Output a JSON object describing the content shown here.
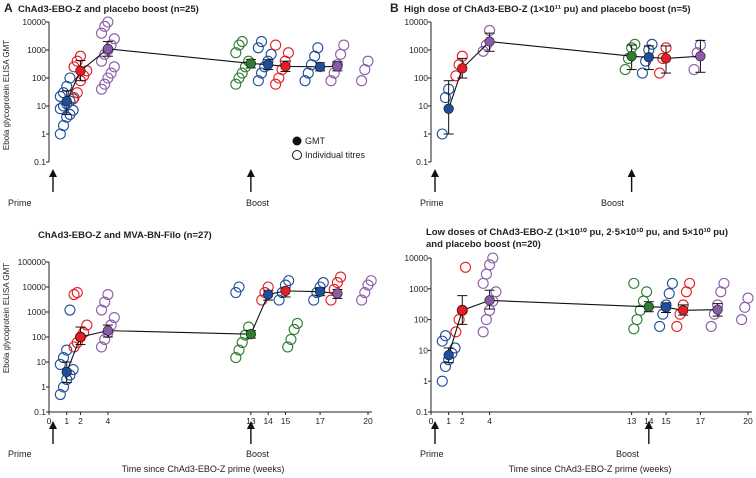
{
  "figure": {
    "panel_letter_a": "A",
    "panel_letter_b": "B",
    "y_axis_label": "Ebola glycoprotein ELISA GMT",
    "x_axis_label": "Time since ChAd3-EBO-Z prime (weeks)",
    "legend_gmt": "GMT",
    "legend_individual": "Individual titres",
    "prime_label": "Prime",
    "boost_label": "Boost",
    "colors": {
      "blue": "#1f4e9c",
      "red": "#e31e24",
      "purple": "#8a5ca8",
      "green": "#2e7d32",
      "black": "#111111"
    }
  },
  "chart_data": [
    {
      "id": "top-left",
      "type": "scatter",
      "scale": "log",
      "title": "ChAd3-EBO-Z and placebo boost (n=25)",
      "ylim": [
        0.1,
        10000
      ],
      "y_ticks": [
        "0.1",
        "1",
        "10",
        "100",
        "1000",
        "10000"
      ],
      "x_ticks": [],
      "prime_week": 0,
      "boost_week": 13,
      "gmt": [
        {
          "x": 1,
          "y": 15,
          "lo": 5,
          "hi": 35,
          "color": "blue"
        },
        {
          "x": 2,
          "y": 180,
          "lo": 80,
          "hi": 420,
          "color": "red"
        },
        {
          "x": 4,
          "y": 1100,
          "lo": 600,
          "hi": 2000,
          "color": "purple"
        },
        {
          "x": 13,
          "y": 330,
          "lo": 230,
          "hi": 460,
          "color": "green"
        },
        {
          "x": 14,
          "y": 300,
          "lo": 200,
          "hi": 450,
          "color": "blue"
        },
        {
          "x": 15,
          "y": 260,
          "lo": 170,
          "hi": 400,
          "color": "red"
        },
        {
          "x": 17,
          "y": 250,
          "lo": 180,
          "hi": 350,
          "color": "blue"
        },
        {
          "x": 18,
          "y": 260,
          "lo": 180,
          "hi": 380,
          "color": "purple"
        }
      ],
      "individual": [
        {
          "color": "blue",
          "x": 1,
          "values": [
            1,
            2,
            4,
            5,
            7,
            8,
            10,
            12,
            15,
            18,
            22,
            30,
            50,
            100
          ]
        },
        {
          "color": "red",
          "x": 2,
          "values": [
            20,
            30,
            80,
            120,
            180,
            250,
            400,
            600
          ]
        },
        {
          "color": "purple",
          "x": 4,
          "values": [
            40,
            60,
            100,
            150,
            250,
            400,
            700,
            1000,
            1500,
            2500,
            4000,
            7000,
            10000
          ]
        },
        {
          "color": "green",
          "x": 12.5,
          "values": [
            60,
            100,
            150,
            250,
            400,
            800,
            1500,
            2000
          ]
        },
        {
          "color": "blue",
          "x": 13.8,
          "values": [
            80,
            150,
            250,
            400,
            700,
            1200,
            2000
          ]
        },
        {
          "color": "red",
          "x": 14.8,
          "values": [
            60,
            100,
            200,
            400,
            800,
            1500
          ]
        },
        {
          "color": "blue",
          "x": 16.5,
          "values": [
            80,
            150,
            300,
            600,
            1200
          ]
        },
        {
          "color": "purple",
          "x": 18,
          "values": [
            80,
            150,
            300,
            700,
            1500
          ]
        },
        {
          "color": "purple",
          "x": 20,
          "values": [
            80,
            200,
            400
          ]
        }
      ]
    },
    {
      "id": "top-right",
      "type": "scatter",
      "scale": "log",
      "title": "High dose of ChAd3-EBO-Z (1×10¹¹ pu) and placebo boost (n=5)",
      "ylim": [
        0.1,
        10000
      ],
      "y_ticks": [
        "0.1",
        "1",
        "10",
        "100",
        "1000",
        "10000"
      ],
      "x_ticks": [],
      "prime_week": 0,
      "boost_week": 13,
      "gmt": [
        {
          "x": 1,
          "y": 8,
          "lo": 1,
          "hi": 80,
          "color": "blue"
        },
        {
          "x": 2,
          "y": 220,
          "lo": 100,
          "hi": 500,
          "color": "red"
        },
        {
          "x": 4,
          "y": 2000,
          "lo": 900,
          "hi": 4000,
          "color": "purple"
        },
        {
          "x": 13,
          "y": 600,
          "lo": 200,
          "hi": 1500,
          "color": "green"
        },
        {
          "x": 14,
          "y": 550,
          "lo": 200,
          "hi": 1400,
          "color": "blue"
        },
        {
          "x": 15,
          "y": 500,
          "lo": 150,
          "hi": 1400,
          "color": "red"
        },
        {
          "x": 17,
          "y": 600,
          "lo": 160,
          "hi": 2200,
          "color": "purple"
        }
      ],
      "individual": [
        {
          "color": "blue",
          "x": 1,
          "values": [
            1,
            20,
            40
          ]
        },
        {
          "color": "red",
          "x": 2,
          "values": [
            120,
            300,
            600
          ]
        },
        {
          "color": "purple",
          "x": 4,
          "values": [
            900,
            1500,
            5000
          ]
        },
        {
          "color": "green",
          "x": 13,
          "values": [
            200,
            500,
            1200,
            1600
          ]
        },
        {
          "color": "blue",
          "x": 14,
          "values": [
            150,
            400,
            1000,
            1600
          ]
        },
        {
          "color": "red",
          "x": 15,
          "values": [
            150,
            500,
            1200
          ]
        },
        {
          "color": "purple",
          "x": 17,
          "values": [
            200,
            800,
            1500
          ]
        }
      ]
    },
    {
      "id": "bottom-left",
      "type": "scatter",
      "scale": "log",
      "title": "ChAd3-EBO-Z and MVA-BN-Filo (n=27)",
      "ylim": [
        0.1,
        100000
      ],
      "y_ticks": [
        "0.1",
        "1",
        "10",
        "100",
        "1000",
        "10000",
        "100000"
      ],
      "x_ticks": [
        "0",
        "1",
        "2",
        "4",
        "13",
        "14",
        "15",
        "17",
        "20"
      ],
      "prime_week": 0,
      "boost_week": 13,
      "gmt": [
        {
          "x": 1,
          "y": 4,
          "lo": 1.5,
          "hi": 10,
          "color": "blue"
        },
        {
          "x": 2,
          "y": 100,
          "lo": 50,
          "hi": 250,
          "color": "red"
        },
        {
          "x": 4,
          "y": 180,
          "lo": 100,
          "hi": 300,
          "color": "purple"
        },
        {
          "x": 13,
          "y": 130,
          "lo": 90,
          "hi": 180,
          "color": "green"
        },
        {
          "x": 14,
          "y": 5000,
          "lo": 3000,
          "hi": 7000,
          "color": "blue"
        },
        {
          "x": 15,
          "y": 7000,
          "lo": 4000,
          "hi": 9000,
          "color": "red"
        },
        {
          "x": 17,
          "y": 6500,
          "lo": 4500,
          "hi": 9000,
          "color": "blue"
        },
        {
          "x": 18,
          "y": 5500,
          "lo": 3500,
          "hi": 8000,
          "color": "purple"
        }
      ],
      "individual": [
        {
          "color": "blue",
          "x": 1,
          "values": [
            0.5,
            1,
            2,
            3,
            5,
            8,
            15,
            30,
            1200
          ]
        },
        {
          "color": "red",
          "x": 2,
          "values": [
            40,
            60,
            100,
            150,
            300,
            5000,
            6000
          ]
        },
        {
          "color": "purple",
          "x": 4,
          "values": [
            40,
            80,
            150,
            300,
            600,
            1200,
            2500,
            5000
          ]
        },
        {
          "color": "green",
          "x": 12.5,
          "values": [
            15,
            30,
            60,
            120,
            250
          ]
        },
        {
          "color": "blue",
          "x": 12.5,
          "values": [
            6000,
            10000
          ]
        },
        {
          "color": "red",
          "x": 14,
          "values": [
            3000,
            6000,
            10000
          ]
        },
        {
          "color": "blue",
          "x": 15,
          "values": [
            3000,
            6000,
            12000,
            18000
          ]
        },
        {
          "color": "green",
          "x": 15.5,
          "values": [
            40,
            80,
            200,
            350
          ]
        },
        {
          "color": "blue",
          "x": 17,
          "values": [
            3000,
            6000,
            10000,
            15000
          ]
        },
        {
          "color": "red",
          "x": 18,
          "values": [
            3000,
            8000,
            15000,
            25000
          ]
        },
        {
          "color": "purple",
          "x": 20,
          "values": [
            3000,
            6000,
            12000,
            18000
          ]
        }
      ]
    },
    {
      "id": "bottom-right",
      "type": "scatter",
      "scale": "log",
      "title": "Low doses of ChAd3-EBO-Z (1×10¹⁰ pu, 2·5×10¹⁰ pu, and 5×10¹⁰ pu) and placebo boost (n=20)",
      "ylim": [
        0.1,
        10000
      ],
      "y_ticks": [
        "0.1",
        "1",
        "10",
        "100",
        "1000",
        "10000"
      ],
      "x_ticks": [
        "0",
        "1",
        "2",
        "4",
        "13",
        "14",
        "15",
        "17",
        "20"
      ],
      "prime_week": 0,
      "boost_week": 14,
      "gmt": [
        {
          "x": 1,
          "y": 7,
          "lo": 4,
          "hi": 12,
          "color": "blue"
        },
        {
          "x": 2,
          "y": 200,
          "lo": 70,
          "hi": 600,
          "color": "red"
        },
        {
          "x": 4,
          "y": 420,
          "lo": 220,
          "hi": 900,
          "color": "purple"
        },
        {
          "x": 14,
          "y": 260,
          "lo": 180,
          "hi": 380,
          "color": "green"
        },
        {
          "x": 15,
          "y": 250,
          "lo": 170,
          "hi": 350,
          "color": "blue"
        },
        {
          "x": 16,
          "y": 200,
          "lo": 140,
          "hi": 300,
          "color": "red"
        },
        {
          "x": 18,
          "y": 210,
          "lo": 130,
          "hi": 330,
          "color": "purple"
        }
      ],
      "individual": [
        {
          "color": "blue",
          "x": 1,
          "values": [
            1,
            3,
            5,
            8,
            12,
            20,
            30
          ]
        },
        {
          "color": "red",
          "x": 2,
          "values": [
            40,
            100,
            200,
            5000
          ]
        },
        {
          "color": "purple",
          "x": 4,
          "values": [
            40,
            100,
            200,
            400,
            800,
            1500,
            3000,
            6000,
            10000
          ]
        },
        {
          "color": "green",
          "x": 13.5,
          "values": [
            50,
            100,
            200,
            400,
            800,
            1500
          ]
        },
        {
          "color": "blue",
          "x": 15,
          "values": [
            60,
            150,
            300,
            700,
            1500
          ]
        },
        {
          "color": "red",
          "x": 16,
          "values": [
            60,
            150,
            300,
            800,
            1500
          ]
        },
        {
          "color": "purple",
          "x": 18,
          "values": [
            60,
            150,
            300,
            800,
            1500
          ]
        },
        {
          "color": "purple",
          "x": 20,
          "values": [
            100,
            250,
            500
          ]
        }
      ]
    }
  ]
}
